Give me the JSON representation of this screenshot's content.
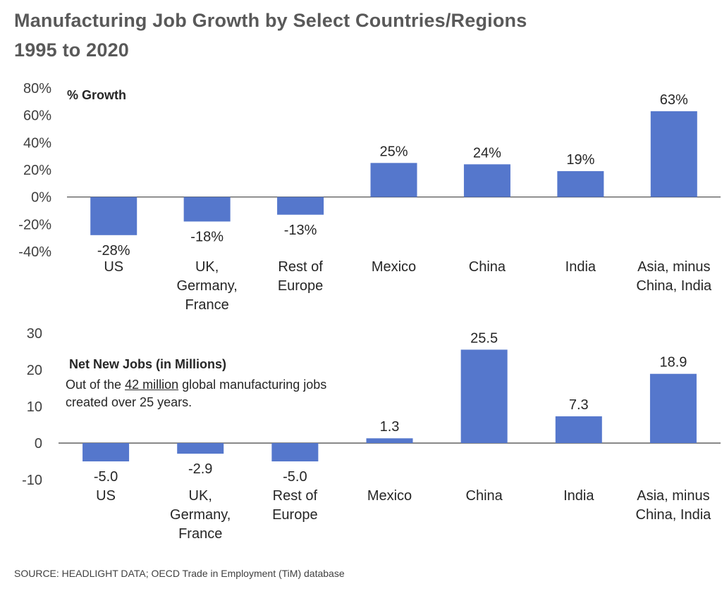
{
  "title": {
    "line1": "Manufacturing Job Growth by Select Countries/Regions",
    "line2": "1995 to 2020"
  },
  "source": "SOURCE: HEADLIGHT DATA;  OECD Trade in Employment (TiM) database",
  "colors": {
    "bar": "#5577CC",
    "axis": "#404040"
  },
  "chart_data": [
    {
      "type": "bar",
      "title": "% Growth",
      "categories": [
        [
          "US"
        ],
        [
          "UK,",
          "Germany,",
          "France"
        ],
        [
          "Rest of",
          "Europe"
        ],
        [
          "Mexico"
        ],
        [
          "China"
        ],
        [
          "India"
        ],
        [
          "Asia, minus",
          "China, India"
        ]
      ],
      "values": [
        -28,
        -18,
        -13,
        25,
        24,
        19,
        63
      ],
      "value_labels": [
        "-28%",
        "-18%",
        "-13%",
        "25%",
        "24%",
        "19%",
        "63%"
      ],
      "ylim": [
        -40,
        80
      ],
      "yticks": [
        80,
        60,
        40,
        20,
        0,
        -20,
        -40
      ],
      "ytick_labels": [
        "80%",
        "60%",
        "40%",
        "20%",
        "0%",
        "-20%",
        "-40%"
      ]
    },
    {
      "type": "bar",
      "title": "Net New Jobs (in Millions)",
      "note_prefix": "Out of the ",
      "note_highlight": "42 million",
      "note_suffix": " global manufacturing jobs created over 25 years.",
      "categories": [
        [
          "US"
        ],
        [
          "UK,",
          "Germany,",
          "France"
        ],
        [
          "Rest of",
          "Europe"
        ],
        [
          "Mexico"
        ],
        [
          "China"
        ],
        [
          "India"
        ],
        [
          "Asia, minus",
          "China, India"
        ]
      ],
      "values": [
        -5.0,
        -2.9,
        -5.0,
        1.3,
        25.5,
        7.3,
        18.9
      ],
      "value_labels": [
        "-5.0",
        "-2.9",
        "-5.0",
        "1.3",
        "25.5",
        "7.3",
        "18.9"
      ],
      "ylim": [
        -10,
        30
      ],
      "yticks": [
        30,
        20,
        10,
        0,
        -10
      ],
      "ytick_labels": [
        "30",
        "20",
        "10",
        "0",
        "-10"
      ]
    }
  ]
}
